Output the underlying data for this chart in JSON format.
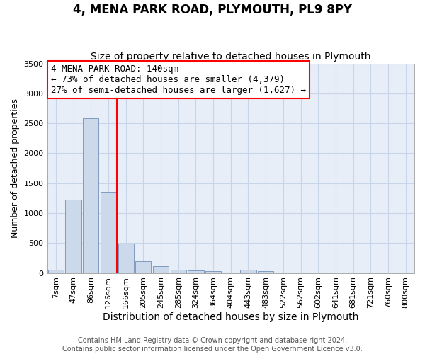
{
  "title": "4, MENA PARK ROAD, PLYMOUTH, PL9 8PY",
  "subtitle": "Size of property relative to detached houses in Plymouth",
  "xlabel": "Distribution of detached houses by size in Plymouth",
  "ylabel": "Number of detached properties",
  "bar_color": "#ccd9ea",
  "bar_edgecolor": "#7090b8",
  "categories": [
    "7sqm",
    "47sqm",
    "86sqm",
    "126sqm",
    "166sqm",
    "205sqm",
    "245sqm",
    "285sqm",
    "324sqm",
    "364sqm",
    "404sqm",
    "443sqm",
    "483sqm",
    "522sqm",
    "562sqm",
    "602sqm",
    "641sqm",
    "681sqm",
    "721sqm",
    "760sqm",
    "800sqm"
  ],
  "values": [
    50,
    1220,
    2580,
    1350,
    490,
    200,
    110,
    50,
    40,
    30,
    5,
    50,
    30,
    0,
    0,
    0,
    0,
    0,
    0,
    0,
    0
  ],
  "ylim": [
    0,
    3500
  ],
  "yticks": [
    0,
    500,
    1000,
    1500,
    2000,
    2500,
    3000,
    3500
  ],
  "vline_x": 3.5,
  "annotation_line1": "4 MENA PARK ROAD: 140sqm",
  "annotation_line2": "← 73% of detached houses are smaller (4,379)",
  "annotation_line3": "27% of semi-detached houses are larger (1,627) →",
  "annotation_box_color": "white",
  "annotation_box_edgecolor": "red",
  "vline_color": "red",
  "grid_color": "#c8d4e8",
  "background_color": "#e8eef8",
  "footer_text": "Contains HM Land Registry data © Crown copyright and database right 2024.\nContains public sector information licensed under the Open Government Licence v3.0.",
  "title_fontsize": 12,
  "subtitle_fontsize": 10,
  "xlabel_fontsize": 10,
  "ylabel_fontsize": 9,
  "tick_fontsize": 8,
  "annotation_fontsize": 9,
  "footer_fontsize": 7
}
